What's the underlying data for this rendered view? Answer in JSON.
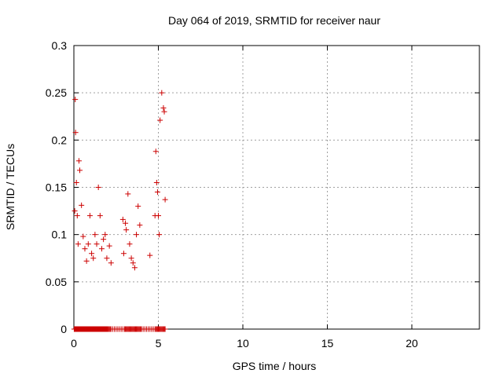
{
  "chart_data": {
    "type": "scatter",
    "title": "Day 064 of 2019, SRMTID for receiver naur",
    "xlabel": "GPS time / hours",
    "ylabel": "SRMTID / TECUs",
    "xlim": [
      0,
      24
    ],
    "ylim": [
      0,
      0.3
    ],
    "xticks": [
      0,
      5,
      10,
      15,
      20
    ],
    "xtick_labels": [
      "0",
      "5",
      "10",
      "15",
      "20"
    ],
    "yticks": [
      0,
      0.05,
      0.1,
      0.15,
      0.2,
      0.25,
      0.3
    ],
    "ytick_labels": [
      "0",
      "0.05",
      "0.1",
      "0.15",
      "0.2",
      "0.25",
      "0.3"
    ],
    "grid": true,
    "marker": "plus",
    "color": "#cc0000",
    "series": [
      {
        "x": [
          0.02,
          0.05,
          0.08,
          0.1,
          0.12,
          0.15,
          0.18,
          0.2,
          0.22,
          0.25,
          0.28,
          0.3,
          0.32,
          0.35,
          0.38,
          0.4,
          0.42,
          0.45,
          0.48,
          0.5,
          0.52,
          0.55,
          0.58,
          0.6,
          0.62,
          0.65,
          0.68,
          0.7,
          0.72,
          0.75,
          0.78,
          0.8,
          0.82,
          0.85,
          0.88,
          0.9,
          0.92,
          0.95,
          0.98,
          1.0,
          1.02,
          1.05,
          1.08,
          1.1,
          1.12,
          1.15,
          1.18,
          1.2,
          1.22,
          1.25,
          1.28,
          1.3,
          1.32,
          1.35,
          1.38,
          1.4,
          1.42,
          1.45,
          1.48,
          1.5,
          1.52,
          1.55,
          1.58,
          1.6,
          1.62,
          1.65,
          1.68,
          1.7,
          1.72,
          1.75,
          1.78,
          1.8,
          1.82,
          1.85,
          1.88,
          1.9,
          1.92,
          1.95,
          1.98,
          2.0,
          2.05,
          2.1,
          2.15,
          2.2,
          2.3,
          2.4,
          2.5,
          2.6,
          2.7,
          2.8,
          2.9,
          3.0,
          3.05,
          3.1,
          3.15,
          3.2,
          3.25,
          3.3,
          3.35,
          3.4,
          3.45,
          3.5,
          3.55,
          3.6,
          3.65,
          3.7,
          3.75,
          3.8,
          3.85,
          3.9,
          3.95,
          4.0,
          4.1,
          4.2,
          4.3,
          4.4,
          4.5,
          4.6,
          4.7,
          4.8,
          4.85,
          4.9,
          4.95,
          5.0,
          5.05,
          5.1,
          5.15,
          5.2,
          5.25,
          5.3,
          5.35,
          5.4,
          0.05,
          0.08,
          0.1,
          0.15,
          0.2,
          0.25,
          0.3,
          0.35,
          0.45,
          0.55,
          0.65,
          0.75,
          0.85,
          0.95,
          1.05,
          1.15,
          1.25,
          1.35,
          1.45,
          1.55,
          1.65,
          1.75,
          1.85,
          1.95,
          2.1,
          2.2,
          2.9,
          2.95,
          3.05,
          3.1,
          3.2,
          3.3,
          3.4,
          3.5,
          3.6,
          3.7,
          3.8,
          3.9,
          4.5,
          4.8,
          4.85,
          4.9,
          4.95,
          5.0,
          5.05,
          5.1,
          5.2,
          5.3,
          5.35,
          5.4
        ],
        "y": [
          0,
          0,
          0,
          0,
          0,
          0,
          0,
          0,
          0,
          0,
          0,
          0,
          0,
          0,
          0,
          0,
          0,
          0,
          0,
          0,
          0,
          0,
          0,
          0,
          0,
          0,
          0,
          0,
          0,
          0,
          0,
          0,
          0,
          0,
          0,
          0,
          0,
          0,
          0,
          0,
          0,
          0,
          0,
          0,
          0,
          0,
          0,
          0,
          0,
          0,
          0,
          0,
          0,
          0,
          0,
          0,
          0,
          0,
          0,
          0,
          0,
          0,
          0,
          0,
          0,
          0,
          0,
          0,
          0,
          0,
          0,
          0,
          0,
          0,
          0,
          0,
          0,
          0,
          0,
          0,
          0,
          0,
          0,
          0,
          0,
          0,
          0,
          0,
          0,
          0,
          0,
          0,
          0,
          0,
          0,
          0,
          0,
          0,
          0,
          0,
          0,
          0,
          0,
          0,
          0,
          0,
          0,
          0,
          0,
          0,
          0,
          0,
          0,
          0,
          0,
          0,
          0,
          0,
          0,
          0,
          0,
          0,
          0,
          0,
          0,
          0,
          0,
          0,
          0,
          0,
          0,
          0,
          0.125,
          0.243,
          0.208,
          0.155,
          0.12,
          0.09,
          0.178,
          0.168,
          0.131,
          0.098,
          0.085,
          0.072,
          0.09,
          0.12,
          0.08,
          0.075,
          0.1,
          0.09,
          0.15,
          0.12,
          0.085,
          0.095,
          0.1,
          0.075,
          0.088,
          0.07,
          0.116,
          0.08,
          0.112,
          0.105,
          0.143,
          0.09,
          0.075,
          0.07,
          0.065,
          0.1,
          0.13,
          0.11,
          0.078,
          0.12,
          0.188,
          0.155,
          0.145,
          0.12,
          0.1,
          0.221,
          0.25,
          0.234,
          0.23,
          0.137
        ]
      }
    ]
  }
}
